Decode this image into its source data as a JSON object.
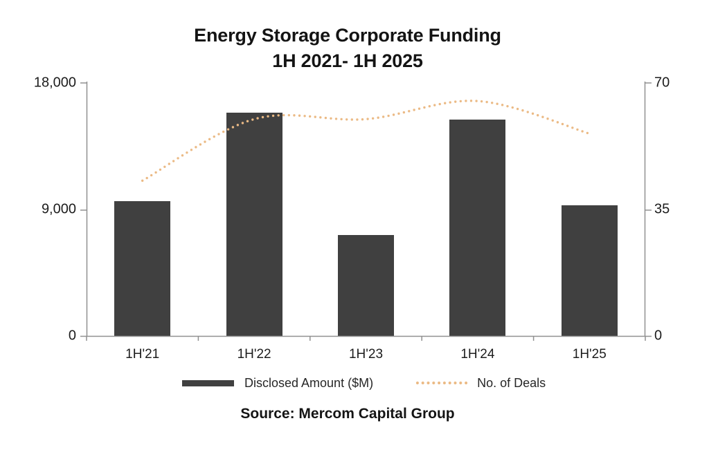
{
  "title": {
    "line1": "Energy Storage Corporate Funding",
    "line2": "1H 2021- 1H 2025"
  },
  "source": "Source: Mercom Capital Group",
  "axes": {
    "left": {
      "ticks": [
        "18,000",
        "9,000",
        "0"
      ],
      "range": [
        0,
        18000
      ]
    },
    "right": {
      "ticks": [
        "70",
        "35",
        "0"
      ],
      "range": [
        0,
        70
      ]
    }
  },
  "legend": [
    {
      "label": "Disclosed Amount ($M)",
      "swatch": "bar-swatch",
      "color": "#404040"
    },
    {
      "label": "No. of Deals",
      "swatch": "dotted-line-swatch",
      "color": "#EBBA85"
    }
  ],
  "colors": {
    "bar": "#404040",
    "deals_line": "#EBBA85",
    "axis": "#909090",
    "text": "#1c1c1c"
  },
  "chart_data": {
    "type": "bar",
    "title": "Energy Storage Corporate Funding 1H 2021- 1H 2025",
    "categories": [
      "1H'21",
      "1H'22",
      "1H'23",
      "1H'24",
      "1H'25"
    ],
    "series": [
      {
        "name": "Disclosed Amount ($M)",
        "type": "bar",
        "axis": "left",
        "color": "#404040",
        "values": [
          9600,
          15900,
          7200,
          15400,
          9300
        ]
      },
      {
        "name": "No. of Deals",
        "type": "line",
        "style": "dotted",
        "smooth": true,
        "axis": "right",
        "color": "#EBBA85",
        "values": [
          43,
          60,
          60,
          65,
          56
        ]
      }
    ],
    "left_axis": {
      "label": "",
      "ylim": [
        0,
        18000
      ],
      "tick_step": 9000
    },
    "right_axis": {
      "label": "",
      "ylim": [
        0,
        70
      ],
      "tick_step": 35
    },
    "grid": false,
    "legend_position": "bottom",
    "source": "Source: Mercom Capital Group"
  }
}
